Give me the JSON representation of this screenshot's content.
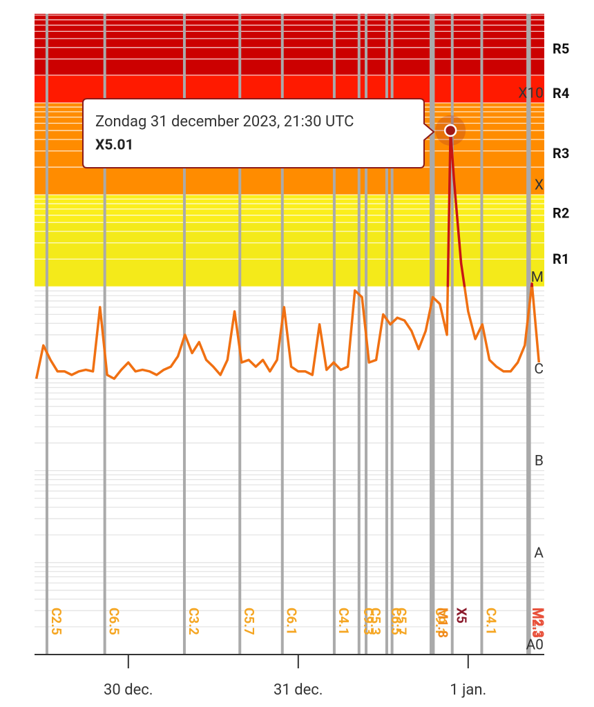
{
  "chart_data": {
    "type": "line",
    "log_scale": true,
    "grid": true,
    "xlim": [
      "2023-12-29T10:45",
      "2024-01-01T10:45"
    ],
    "xticks": [
      {
        "value": "2023-12-30T00:00",
        "label": "30 dec."
      },
      {
        "value": "2023-12-31T00:00",
        "label": "31 dec."
      },
      {
        "value": "2024-01-01T00:00",
        "label": "1 jan."
      }
    ],
    "ylim": [
      1e-09,
      0.0093
    ],
    "yticks": [
      {
        "value": 1e-09,
        "label": "A0"
      },
      {
        "value": 1e-08,
        "label": "A"
      },
      {
        "value": 1e-07,
        "label": "B"
      },
      {
        "value": 1e-06,
        "label": "C"
      },
      {
        "value": 1e-05,
        "label": "M"
      },
      {
        "value": 0.0001,
        "label": "X"
      },
      {
        "value": 0.001,
        "label": "X10"
      }
    ],
    "bands": [
      {
        "label": "R1",
        "from": 1e-05,
        "to": 5e-05,
        "color": "#f4ea1a"
      },
      {
        "label": "R2",
        "from": 5e-05,
        "to": 0.0001,
        "color": "#fbee1c"
      },
      {
        "label": "R3",
        "from": 0.0001,
        "to": 0.001,
        "color": "#ff8c00"
      },
      {
        "label": "R4",
        "from": 0.001,
        "to": 0.002,
        "color": "#ff1a00"
      },
      {
        "label": "R5",
        "from": 0.002,
        "to": 0.0093,
        "color": "#cc0000"
      }
    ],
    "series": [
      {
        "color": "#f07012",
        "above_color": "#c81414",
        "color_threshold": 1e-05,
        "x": [
          "2023-12-29T11:00",
          "2023-12-29T12:00",
          "2023-12-29T13:00",
          "2023-12-29T14:00",
          "2023-12-29T15:00",
          "2023-12-29T16:00",
          "2023-12-29T17:00",
          "2023-12-29T18:00",
          "2023-12-29T19:00",
          "2023-12-29T20:00",
          "2023-12-29T21:00",
          "2023-12-29T22:00",
          "2023-12-29T23:00",
          "2023-12-30T00:00",
          "2023-12-30T01:00",
          "2023-12-30T02:00",
          "2023-12-30T03:00",
          "2023-12-30T04:00",
          "2023-12-30T05:00",
          "2023-12-30T06:00",
          "2023-12-30T07:00",
          "2023-12-30T08:00",
          "2023-12-30T09:00",
          "2023-12-30T10:00",
          "2023-12-30T11:00",
          "2023-12-30T12:00",
          "2023-12-30T13:00",
          "2023-12-30T14:00",
          "2023-12-30T15:00",
          "2023-12-30T16:00",
          "2023-12-30T17:00",
          "2023-12-30T18:00",
          "2023-12-30T19:00",
          "2023-12-30T20:00",
          "2023-12-30T21:00",
          "2023-12-30T22:00",
          "2023-12-30T23:00",
          "2023-12-31T00:00",
          "2023-12-31T01:00",
          "2023-12-31T02:00",
          "2023-12-31T03:00",
          "2023-12-31T04:00",
          "2023-12-31T05:00",
          "2023-12-31T06:00",
          "2023-12-31T07:00",
          "2023-12-31T08:00",
          "2023-12-31T09:00",
          "2023-12-31T10:00",
          "2023-12-31T11:00",
          "2023-12-31T12:00",
          "2023-12-31T13:00",
          "2023-12-31T14:00",
          "2023-12-31T15:00",
          "2023-12-31T16:00",
          "2023-12-31T17:00",
          "2023-12-31T18:00",
          "2023-12-31T19:00",
          "2023-12-31T20:00",
          "2023-12-31T21:00",
          "2023-12-31T21:30",
          "2023-12-31T22:00",
          "2023-12-31T23:00",
          "2024-01-01T00:00",
          "2024-01-01T01:00",
          "2024-01-01T02:00",
          "2024-01-01T03:00",
          "2024-01-01T04:00",
          "2024-01-01T05:00",
          "2024-01-01T06:00",
          "2024-01-01T07:00",
          "2024-01-01T08:00",
          "2024-01-01T09:00",
          "2024-01-01T10:00"
        ],
        "values": [
          1e-06,
          2.3e-06,
          1.6e-06,
          1.2e-06,
          1.2e-06,
          1.1e-06,
          1.2e-06,
          1.25e-06,
          1.2e-06,
          6e-06,
          1.1e-06,
          1e-06,
          1.25e-06,
          1.5e-06,
          1.2e-06,
          1.25e-06,
          1.2e-06,
          1.1e-06,
          1.25e-06,
          1.35e-06,
          1.75e-06,
          3e-06,
          1.9e-06,
          2.5e-06,
          1.6e-06,
          1.35e-06,
          1.1e-06,
          1.6e-06,
          5.4e-06,
          1.5e-06,
          1.6e-06,
          1.35e-06,
          1.6e-06,
          1.2e-06,
          1.6e-06,
          6e-06,
          1.35e-06,
          1.2e-06,
          1.2e-06,
          1.1e-06,
          3.9e-06,
          1.25e-06,
          1.5e-06,
          1.25e-06,
          1.35e-06,
          9.1e-06,
          7.7e-06,
          1.5e-06,
          1.6e-06,
          5e-06,
          3.9e-06,
          4.6e-06,
          4.3e-06,
          3.3e-06,
          2.1e-06,
          3.3e-06,
          7.7e-06,
          6.5e-06,
          3e-06,
          0.000501,
          0.000145,
          1.8e-05,
          5.4e-06,
          2.7e-06,
          3.9e-06,
          1.6e-06,
          1.35e-06,
          1.2e-06,
          1.2e-06,
          1.5e-06,
          2.3e-06,
          1.08e-05,
          1.5e-06
        ]
      }
    ],
    "flares": [
      {
        "time": "2023-12-29T12:30",
        "label": "C2.5",
        "color": "#f5a623"
      },
      {
        "time": "2023-12-29T20:40",
        "label": "C6.5",
        "color": "#f5a623"
      },
      {
        "time": "2023-12-30T07:55",
        "label": "C3.2",
        "color": "#f5a623"
      },
      {
        "time": "2023-12-30T15:45",
        "label": "C5.7",
        "color": "#f5a623"
      },
      {
        "time": "2023-12-30T21:45",
        "label": "C6.1",
        "color": "#f5a623"
      },
      {
        "time": "2023-12-31T05:05",
        "label": "C4.1",
        "color": "#f5a623"
      },
      {
        "time": "2023-12-31T08:35",
        "label": "C9.3",
        "color": "#f5a623"
      },
      {
        "time": "2023-12-31T09:35",
        "label": "C5.3",
        "color": "#f5a623"
      },
      {
        "time": "2023-12-31T12:30",
        "label": "C6.5",
        "color": "#f5a623"
      },
      {
        "time": "2023-12-31T13:15",
        "label": "C5.7",
        "color": "#f5a623"
      },
      {
        "time": "2023-12-31T18:45",
        "label": "C9.1",
        "color": "#f5a623"
      },
      {
        "time": "2023-12-31T19:05",
        "label": "M1.8",
        "color": "#f08a1c"
      },
      {
        "time": "2023-12-31T21:45",
        "label": "X5",
        "color": "#8b1a2b"
      },
      {
        "time": "2024-01-01T01:55",
        "label": "C4.1",
        "color": "#f5a623"
      },
      {
        "time": "2024-01-01T08:25",
        "label": "M2.3",
        "color": "#e8503a"
      },
      {
        "time": "2024-01-01T08:40",
        "label": "M2.3",
        "color": "#e8503a"
      }
    ],
    "tooltip": {
      "point": 59,
      "title": "Zondag 31 december 2023, 21:30 UTC",
      "value_label": "X5.01"
    }
  }
}
